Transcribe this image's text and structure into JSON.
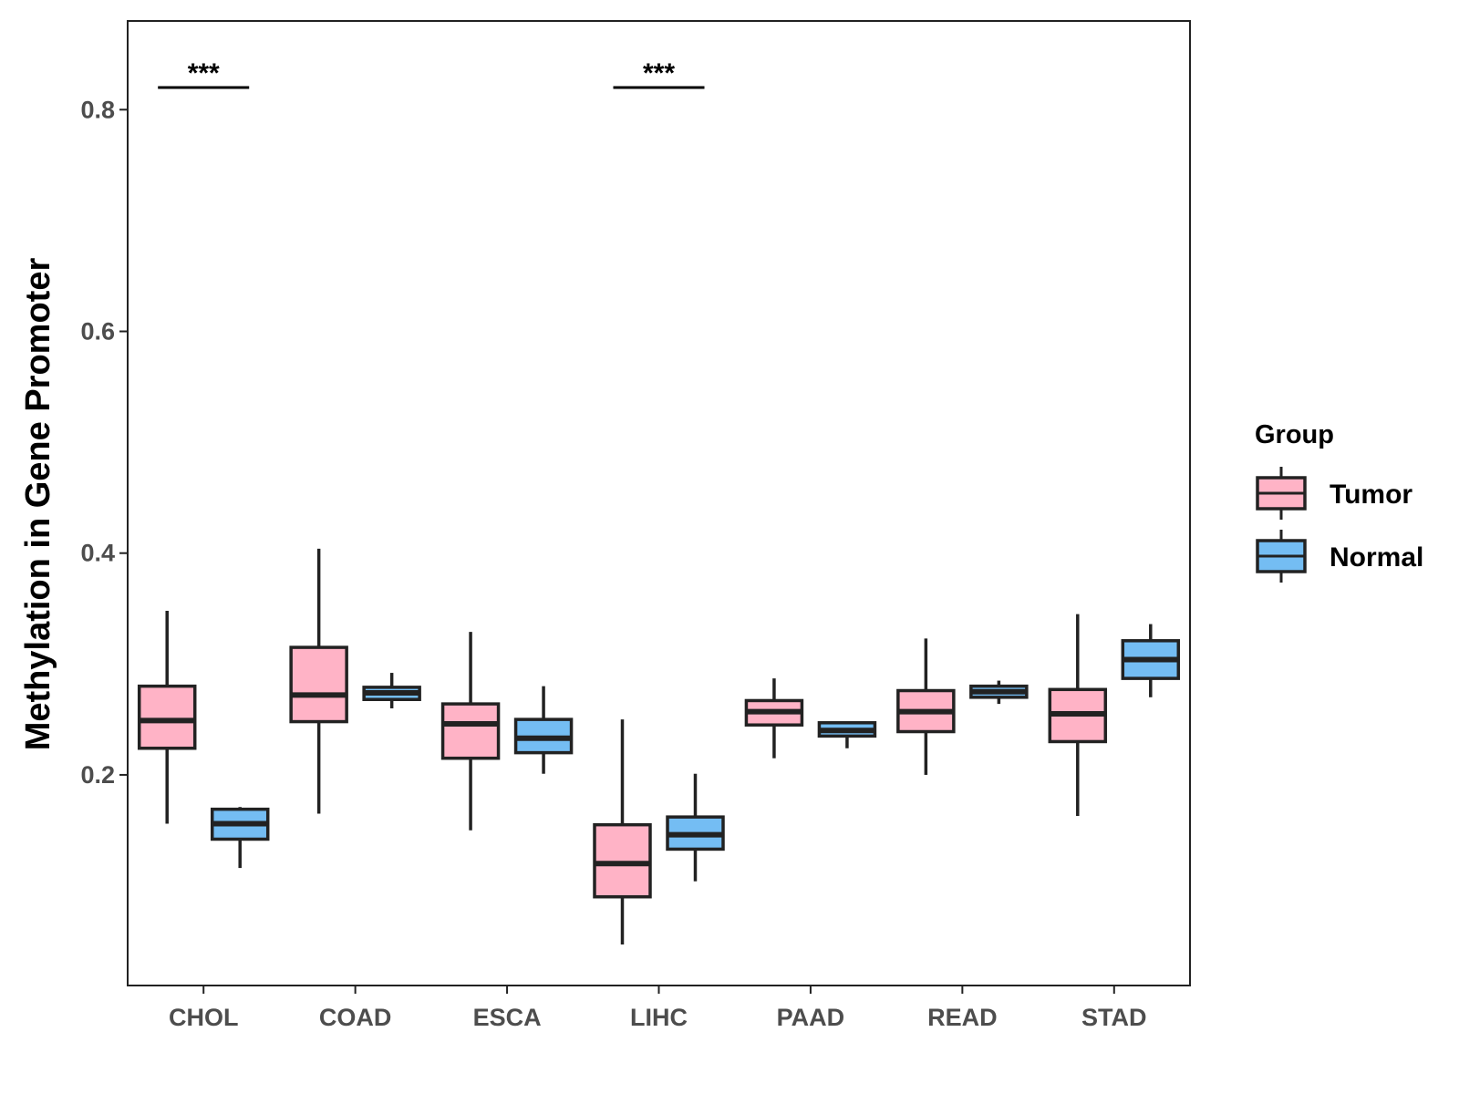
{
  "chart_data": {
    "type": "boxplot",
    "ylabel": "Methylation in Gene Promoter",
    "xlabel": "",
    "ylim": [
      0.01,
      0.88
    ],
    "yticks": [
      0.2,
      0.4,
      0.6,
      0.8
    ],
    "ytick_labels": [
      "0.2",
      "0.4",
      "0.6",
      "0.8"
    ],
    "categories": [
      "CHOL",
      "COAD",
      "ESCA",
      "LIHC",
      "PAAD",
      "READ",
      "STAD"
    ],
    "grid": false,
    "legend": {
      "title": "Group",
      "position": "right",
      "entries": [
        "Tumor",
        "Normal"
      ]
    },
    "series": [
      {
        "name": "Tumor",
        "color": "#ffb3c6",
        "boxes": [
          {
            "category": "CHOL",
            "min": 0.156,
            "q1": 0.224,
            "median": 0.249,
            "q3": 0.28,
            "max": 0.348
          },
          {
            "category": "COAD",
            "min": 0.165,
            "q1": 0.248,
            "median": 0.272,
            "q3": 0.315,
            "max": 0.404
          },
          {
            "category": "ESCA",
            "min": 0.15,
            "q1": 0.215,
            "median": 0.246,
            "q3": 0.264,
            "max": 0.329
          },
          {
            "category": "LIHC",
            "min": 0.047,
            "q1": 0.09,
            "median": 0.12,
            "q3": 0.155,
            "max": 0.25
          },
          {
            "category": "PAAD",
            "min": 0.215,
            "q1": 0.245,
            "median": 0.257,
            "q3": 0.267,
            "max": 0.287
          },
          {
            "category": "READ",
            "min": 0.2,
            "q1": 0.239,
            "median": 0.257,
            "q3": 0.276,
            "max": 0.323
          },
          {
            "category": "STAD",
            "min": 0.163,
            "q1": 0.23,
            "median": 0.255,
            "q3": 0.277,
            "max": 0.345
          }
        ]
      },
      {
        "name": "Normal",
        "color": "#74bdf3",
        "boxes": [
          {
            "category": "CHOL",
            "min": 0.116,
            "q1": 0.142,
            "median": 0.156,
            "q3": 0.169,
            "max": 0.171
          },
          {
            "category": "COAD",
            "min": 0.26,
            "q1": 0.268,
            "median": 0.274,
            "q3": 0.279,
            "max": 0.292
          },
          {
            "category": "ESCA",
            "min": 0.201,
            "q1": 0.22,
            "median": 0.233,
            "q3": 0.25,
            "max": 0.28
          },
          {
            "category": "LIHC",
            "min": 0.104,
            "q1": 0.133,
            "median": 0.146,
            "q3": 0.162,
            "max": 0.201
          },
          {
            "category": "PAAD",
            "min": 0.224,
            "q1": 0.235,
            "median": 0.24,
            "q3": 0.247,
            "max": 0.248
          },
          {
            "category": "READ",
            "min": 0.264,
            "q1": 0.27,
            "median": 0.275,
            "q3": 0.28,
            "max": 0.285
          },
          {
            "category": "STAD",
            "min": 0.27,
            "q1": 0.287,
            "median": 0.304,
            "q3": 0.321,
            "max": 0.336
          }
        ]
      }
    ],
    "annotations": [
      {
        "category": "CHOL",
        "label": "***",
        "y": 0.82
      },
      {
        "category": "LIHC",
        "label": "***",
        "y": 0.82
      }
    ]
  }
}
